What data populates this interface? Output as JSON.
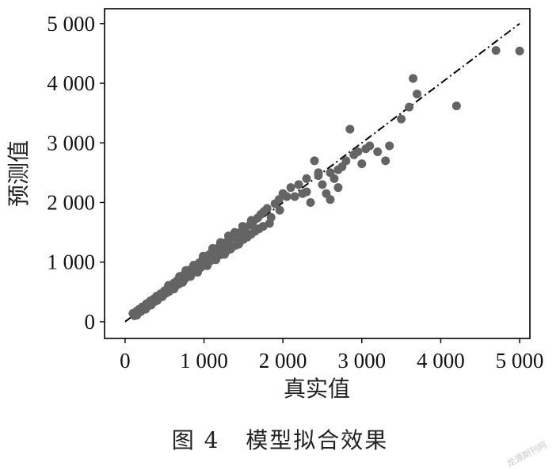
{
  "caption": {
    "figure_no": "图 4",
    "text": "模型拟合效果"
  },
  "watermark": "龙源期刊网",
  "colors": {
    "points": "#646464",
    "fit_line": "#000000",
    "axes": "#000000"
  },
  "chart_data": {
    "type": "scatter",
    "title": "",
    "xlabel": "真实值",
    "ylabel": "预测值",
    "xlim": [
      -260,
      5130
    ],
    "ylim": [
      -280,
      5250
    ],
    "xticks": [
      0,
      1000,
      2000,
      3000,
      4000,
      5000
    ],
    "xtick_labels": [
      "0",
      "1 000",
      "2 000",
      "3 000",
      "4 000",
      "5 000"
    ],
    "yticks": [
      0,
      1000,
      2000,
      3000,
      4000,
      5000
    ],
    "ytick_labels": [
      "0",
      "1 000",
      "2 000",
      "3 000",
      "4 000",
      "5 000"
    ],
    "grid": false,
    "reference_line": {
      "style": "dash-dot",
      "from": [
        0,
        0
      ],
      "to": [
        5000,
        5000
      ]
    },
    "series": [
      {
        "points": [
          [
            100,
            140
          ],
          [
            120,
            100
          ],
          [
            150,
            180
          ],
          [
            180,
            210
          ],
          [
            200,
            170
          ],
          [
            220,
            250
          ],
          [
            250,
            230
          ],
          [
            270,
            300
          ],
          [
            300,
            270
          ],
          [
            320,
            350
          ],
          [
            340,
            320
          ],
          [
            360,
            380
          ],
          [
            380,
            340
          ],
          [
            400,
            430
          ],
          [
            420,
            400
          ],
          [
            450,
            470
          ],
          [
            470,
            420
          ],
          [
            500,
            520
          ],
          [
            520,
            480
          ],
          [
            540,
            560
          ],
          [
            560,
            510
          ],
          [
            580,
            610
          ],
          [
            600,
            560
          ],
          [
            620,
            650
          ],
          [
            640,
            600
          ],
          [
            660,
            690
          ],
          [
            680,
            630
          ],
          [
            700,
            740
          ],
          [
            720,
            680
          ],
          [
            740,
            780
          ],
          [
            760,
            720
          ],
          [
            780,
            820
          ],
          [
            800,
            760
          ],
          [
            820,
            870
          ],
          [
            840,
            800
          ],
          [
            860,
            900
          ],
          [
            880,
            840
          ],
          [
            900,
            950
          ],
          [
            920,
            870
          ],
          [
            940,
            990
          ],
          [
            960,
            910
          ],
          [
            980,
            1030
          ],
          [
            1000,
            950
          ],
          [
            1020,
            1080
          ],
          [
            1040,
            990
          ],
          [
            1060,
            1120
          ],
          [
            1080,
            1020
          ],
          [
            1100,
            1160
          ],
          [
            1120,
            1060
          ],
          [
            1140,
            1200
          ],
          [
            1160,
            1090
          ],
          [
            1180,
            1240
          ],
          [
            1200,
            1120
          ],
          [
            1220,
            1280
          ],
          [
            1250,
            1160
          ],
          [
            1280,
            1330
          ],
          [
            1300,
            1200
          ],
          [
            1320,
            1380
          ],
          [
            1350,
            1250
          ],
          [
            1380,
            1420
          ],
          [
            1400,
            1280
          ],
          [
            1420,
            1470
          ],
          [
            1450,
            1330
          ],
          [
            1480,
            1520
          ],
          [
            1500,
            1380
          ],
          [
            1520,
            1560
          ],
          [
            1550,
            1420
          ],
          [
            1580,
            1620
          ],
          [
            1600,
            1470
          ],
          [
            1620,
            1680
          ],
          [
            1650,
            1520
          ],
          [
            1680,
            1740
          ],
          [
            1700,
            1560
          ],
          [
            1720,
            1800
          ],
          [
            1750,
            1600
          ],
          [
            1800,
            1900
          ],
          [
            1850,
            1750
          ],
          [
            1900,
            1980
          ],
          [
            1950,
            2050
          ],
          [
            2000,
            2150
          ],
          [
            2050,
            2100
          ],
          [
            2100,
            2250
          ],
          [
            2200,
            2300
          ],
          [
            2250,
            2150
          ],
          [
            2300,
            2400
          ],
          [
            2350,
            2000
          ],
          [
            2400,
            2700
          ],
          [
            2450,
            2500
          ],
          [
            2500,
            2300
          ],
          [
            2550,
            2150
          ],
          [
            2600,
            2050
          ],
          [
            2650,
            2400
          ],
          [
            2700,
            2250
          ],
          [
            2750,
            2600
          ],
          [
            2800,
            2700
          ],
          [
            2850,
            3230
          ],
          [
            2900,
            2800
          ],
          [
            3000,
            2650
          ],
          [
            3050,
            2900
          ],
          [
            3100,
            2950
          ],
          [
            3200,
            2850
          ],
          [
            3300,
            2700
          ],
          [
            3350,
            2950
          ],
          [
            3500,
            3400
          ],
          [
            3600,
            3600
          ],
          [
            3650,
            4080
          ],
          [
            3700,
            3820
          ],
          [
            4200,
            3620
          ],
          [
            4700,
            4550
          ],
          [
            5000,
            4540
          ],
          [
            150,
            110
          ],
          [
            260,
            210
          ],
          [
            330,
            280
          ],
          [
            410,
            360
          ],
          [
            480,
            440
          ],
          [
            550,
            610
          ],
          [
            620,
            550
          ],
          [
            690,
            760
          ],
          [
            730,
            660
          ],
          [
            770,
            860
          ],
          [
            830,
            760
          ],
          [
            870,
            950
          ],
          [
            920,
            830
          ],
          [
            990,
            1100
          ],
          [
            1040,
            940
          ],
          [
            1110,
            1230
          ],
          [
            1150,
            1040
          ],
          [
            1210,
            1330
          ],
          [
            1260,
            1130
          ],
          [
            1310,
            1440
          ],
          [
            1340,
            1220
          ],
          [
            1390,
            1500
          ],
          [
            1440,
            1300
          ],
          [
            1490,
            1600
          ],
          [
            1560,
            1460
          ],
          [
            1600,
            1700
          ],
          [
            1660,
            1560
          ],
          [
            1760,
            1850
          ],
          [
            1830,
            1650
          ],
          [
            1960,
            1870
          ],
          [
            2150,
            2100
          ],
          [
            2300,
            2180
          ],
          [
            2450,
            2450
          ],
          [
            2600,
            2500
          ],
          [
            2700,
            2550
          ],
          [
            2950,
            2850
          ]
        ]
      }
    ]
  }
}
